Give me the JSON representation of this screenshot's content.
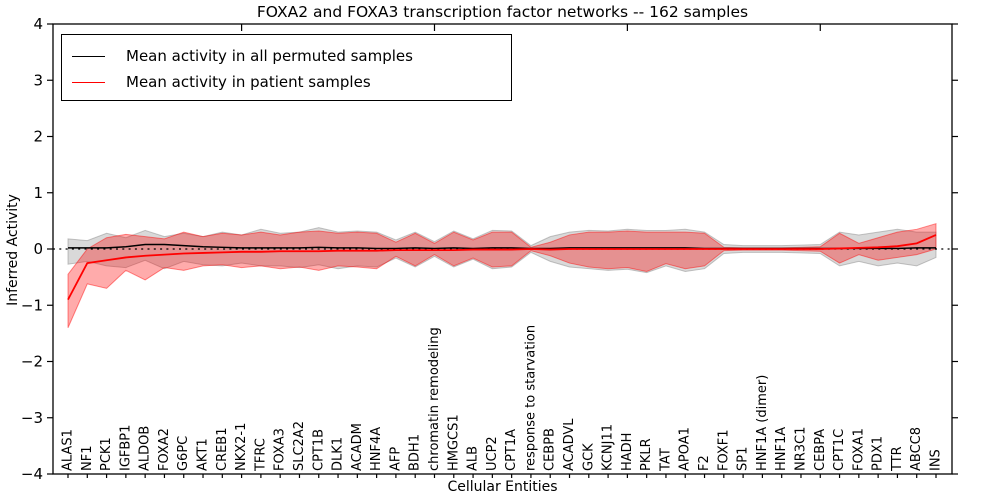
{
  "chart_data": {
    "type": "line",
    "title": "FOXA2 and FOXA3 transcription factor networks -- 162 samples",
    "xlabel": "Cellular Entities",
    "ylabel": "Inferred Activity",
    "ylim": [
      -4,
      4
    ],
    "grid": false,
    "legend_position": "upper left",
    "y_ticks": [
      4,
      3,
      2,
      1,
      0,
      -1,
      -2,
      -3,
      -4
    ],
    "y_tick_labels": [
      "4",
      "3",
      "2",
      "1",
      "0",
      "−1",
      "−2",
      "−3",
      "−4"
    ],
    "x_top_ticks": [
      10,
      20,
      30,
      40
    ],
    "zero_line": {
      "style": "dotted",
      "color": "#000000"
    },
    "categories": [
      "ALAS1",
      "NF1",
      "PCK1",
      "IGFBP1",
      "ALDOB",
      "FOXA2",
      "G6PC",
      "AKT1",
      "CREB1",
      "NKX2-1",
      "TFRC",
      "FOXA3",
      "SLC2A2",
      "CPT1B",
      "DLK1",
      "ACADM",
      "HNF4A",
      "AFP",
      "BDH1",
      "chromatin remodeling",
      "HMGCS1",
      "ALB",
      "UCP2",
      "CPT1A",
      "response to starvation",
      "CEBPB",
      "ACADVL",
      "GCK",
      "KCNJ11",
      "HADH",
      "PKLR",
      "TAT",
      "APOA1",
      "F2",
      "FOXF1",
      "SP1",
      "HNF1A (dimer)",
      "HNF1A",
      "NR3C1",
      "CEBPA",
      "CPT1C",
      "FOXA1",
      "PDX1",
      "TTR",
      "ABCC8",
      "INS"
    ],
    "series": [
      {
        "name": "Mean activity in all permuted samples",
        "color": "#000000",
        "values": [
          0.02,
          0.02,
          0.02,
          0.04,
          0.08,
          0.08,
          0.06,
          0.04,
          0.03,
          0.02,
          0.02,
          0.02,
          0.02,
          0.03,
          0.02,
          0.02,
          0.01,
          0.01,
          0.02,
          0.01,
          0.02,
          0.01,
          0.02,
          0.02,
          0.01,
          0.01,
          0.02,
          0.02,
          0.02,
          0.02,
          0.02,
          0.02,
          0.02,
          0.01,
          0.01,
          0.01,
          0.01,
          0.01,
          0.01,
          0.01,
          0.01,
          0.01,
          0.01,
          0.01,
          0.02,
          0.02
        ]
      },
      {
        "name": "Mean activity in patient samples",
        "color": "#ff0000",
        "values": [
          -0.9,
          -0.25,
          -0.2,
          -0.15,
          -0.12,
          -0.1,
          -0.08,
          -0.07,
          -0.06,
          -0.05,
          -0.05,
          -0.04,
          -0.04,
          -0.04,
          -0.03,
          -0.03,
          -0.03,
          -0.02,
          -0.02,
          -0.02,
          -0.02,
          -0.01,
          -0.01,
          -0.01,
          0.0,
          -0.01,
          0.0,
          0.0,
          0.0,
          0.0,
          0.0,
          0.0,
          0.0,
          0.0,
          0.0,
          0.0,
          0.0,
          0.0,
          0.0,
          0.0,
          0.01,
          0.02,
          0.03,
          0.05,
          0.1,
          0.25
        ]
      }
    ],
    "bands": [
      {
        "name": "permuted-samples-band",
        "color": "#808080",
        "opacity": 0.3,
        "upper": [
          0.18,
          0.15,
          0.28,
          0.2,
          0.33,
          0.22,
          0.28,
          0.22,
          0.3,
          0.25,
          0.35,
          0.28,
          0.3,
          0.38,
          0.3,
          0.32,
          0.3,
          0.16,
          0.3,
          0.13,
          0.32,
          0.18,
          0.33,
          0.32,
          0.06,
          0.22,
          0.3,
          0.33,
          0.32,
          0.35,
          0.33,
          0.33,
          0.35,
          0.3,
          0.08,
          0.06,
          0.06,
          0.06,
          0.07,
          0.08,
          0.3,
          0.25,
          0.3,
          0.35,
          0.3,
          0.3
        ],
        "lower": [
          -0.27,
          -0.22,
          -0.3,
          -0.33,
          -0.2,
          -0.35,
          -0.22,
          -0.28,
          -0.3,
          -0.25,
          -0.3,
          -0.3,
          -0.33,
          -0.28,
          -0.35,
          -0.3,
          -0.32,
          -0.16,
          -0.32,
          -0.13,
          -0.32,
          -0.18,
          -0.35,
          -0.32,
          -0.06,
          -0.22,
          -0.32,
          -0.35,
          -0.38,
          -0.36,
          -0.42,
          -0.3,
          -0.4,
          -0.35,
          -0.08,
          -0.06,
          -0.06,
          -0.06,
          -0.07,
          -0.08,
          -0.3,
          -0.22,
          -0.3,
          -0.25,
          -0.3,
          -0.15
        ]
      },
      {
        "name": "patient-samples-band",
        "color": "#ff0000",
        "opacity": 0.33,
        "upper": [
          -0.45,
          0.0,
          0.2,
          0.26,
          0.22,
          0.18,
          0.3,
          0.22,
          0.28,
          0.25,
          0.3,
          0.25,
          0.3,
          0.32,
          0.28,
          0.3,
          0.28,
          0.12,
          0.28,
          0.1,
          0.3,
          0.16,
          0.3,
          0.3,
          0.03,
          0.12,
          0.25,
          0.3,
          0.3,
          0.32,
          0.3,
          0.3,
          0.3,
          0.28,
          0.03,
          0.02,
          0.02,
          0.02,
          0.03,
          0.04,
          0.28,
          0.1,
          0.2,
          0.3,
          0.35,
          0.45
        ],
        "lower": [
          -1.4,
          -0.62,
          -0.7,
          -0.38,
          -0.55,
          -0.33,
          -0.38,
          -0.3,
          -0.28,
          -0.33,
          -0.3,
          -0.35,
          -0.32,
          -0.38,
          -0.3,
          -0.32,
          -0.35,
          -0.13,
          -0.3,
          -0.1,
          -0.3,
          -0.16,
          -0.32,
          -0.3,
          -0.03,
          -0.12,
          -0.25,
          -0.32,
          -0.35,
          -0.33,
          -0.4,
          -0.26,
          -0.35,
          -0.3,
          -0.03,
          -0.02,
          -0.02,
          -0.02,
          -0.03,
          -0.04,
          -0.25,
          -0.1,
          -0.2,
          -0.15,
          -0.1,
          0.0
        ]
      }
    ]
  }
}
